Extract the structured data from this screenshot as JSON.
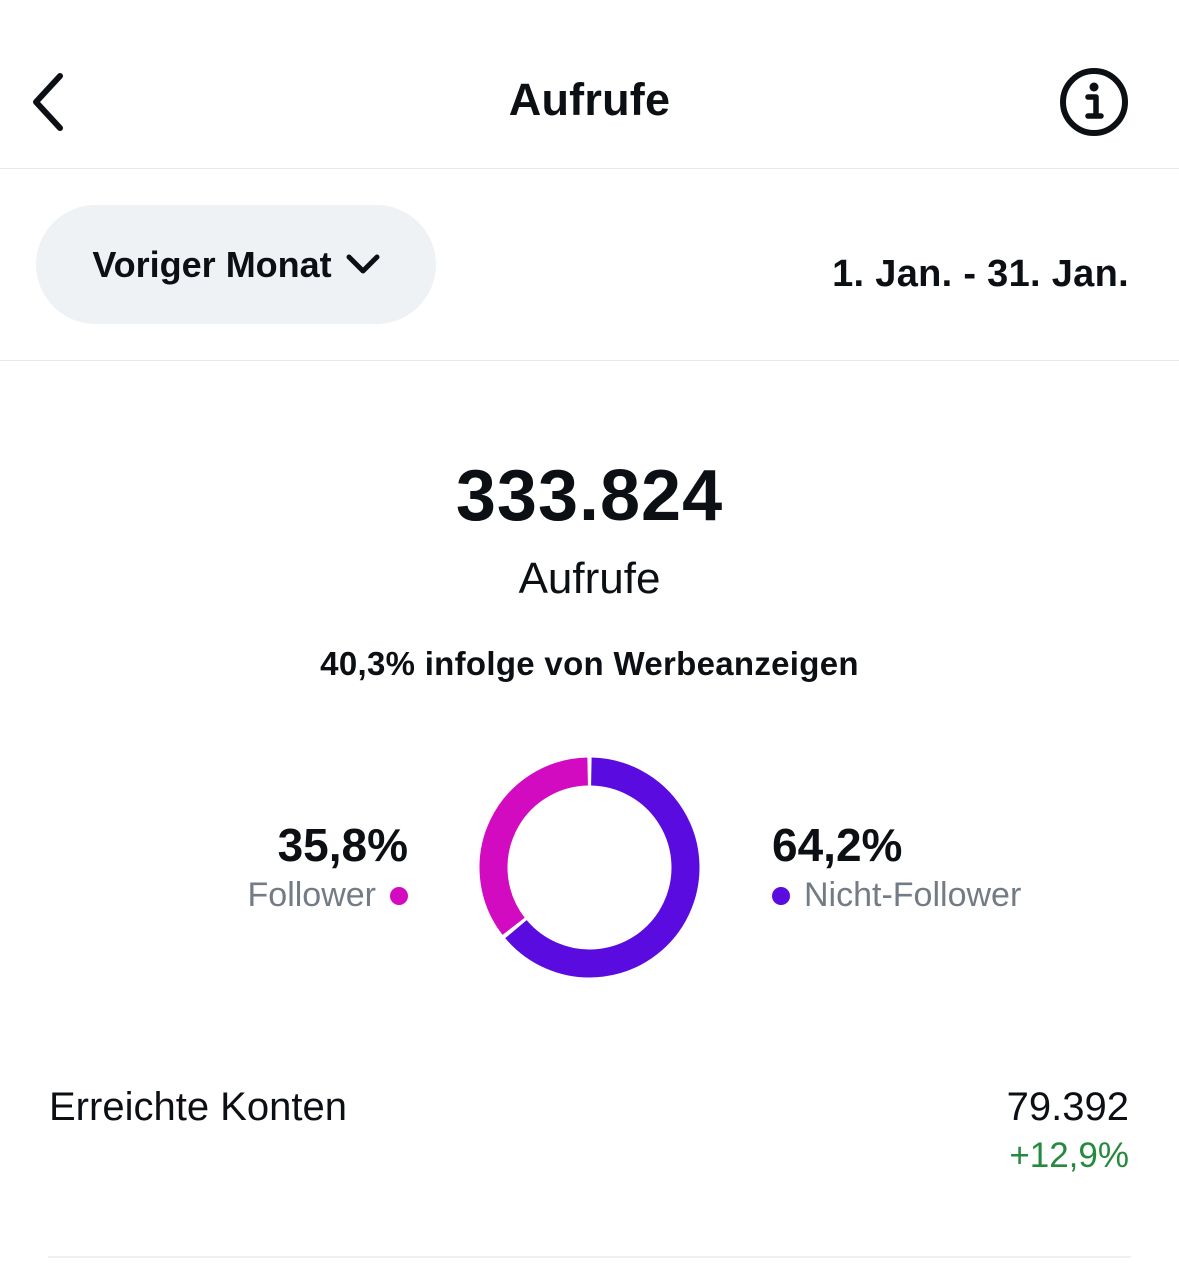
{
  "header": {
    "title": "Aufrufe",
    "back_icon": "chevron-left-icon",
    "info_icon": "info-circle-icon"
  },
  "filter": {
    "period_label": "Voriger Monat",
    "period_icon": "chevron-down-icon",
    "date_range": "1. Jan. - 31. Jan."
  },
  "metric": {
    "value": "333.824",
    "label": "Aufrufe",
    "ads_note": "40,3% infolge von Werbeanzeigen"
  },
  "chart_data": {
    "type": "pie",
    "title": "",
    "categories": [
      "Follower",
      "Nicht-Follower"
    ],
    "values": [
      35.8,
      64.2
    ],
    "value_labels": [
      "35,8%",
      "64,2%"
    ],
    "colors": [
      "#d20bc0",
      "#5a0be0"
    ]
  },
  "reach": {
    "label": "Erreichte Konten",
    "value": "79.392",
    "change": "+12,9%"
  },
  "colors": {
    "text": "#0c1014",
    "secondary": "#737b85",
    "positive": "#268a3e",
    "pill_bg": "#eff2f5"
  }
}
